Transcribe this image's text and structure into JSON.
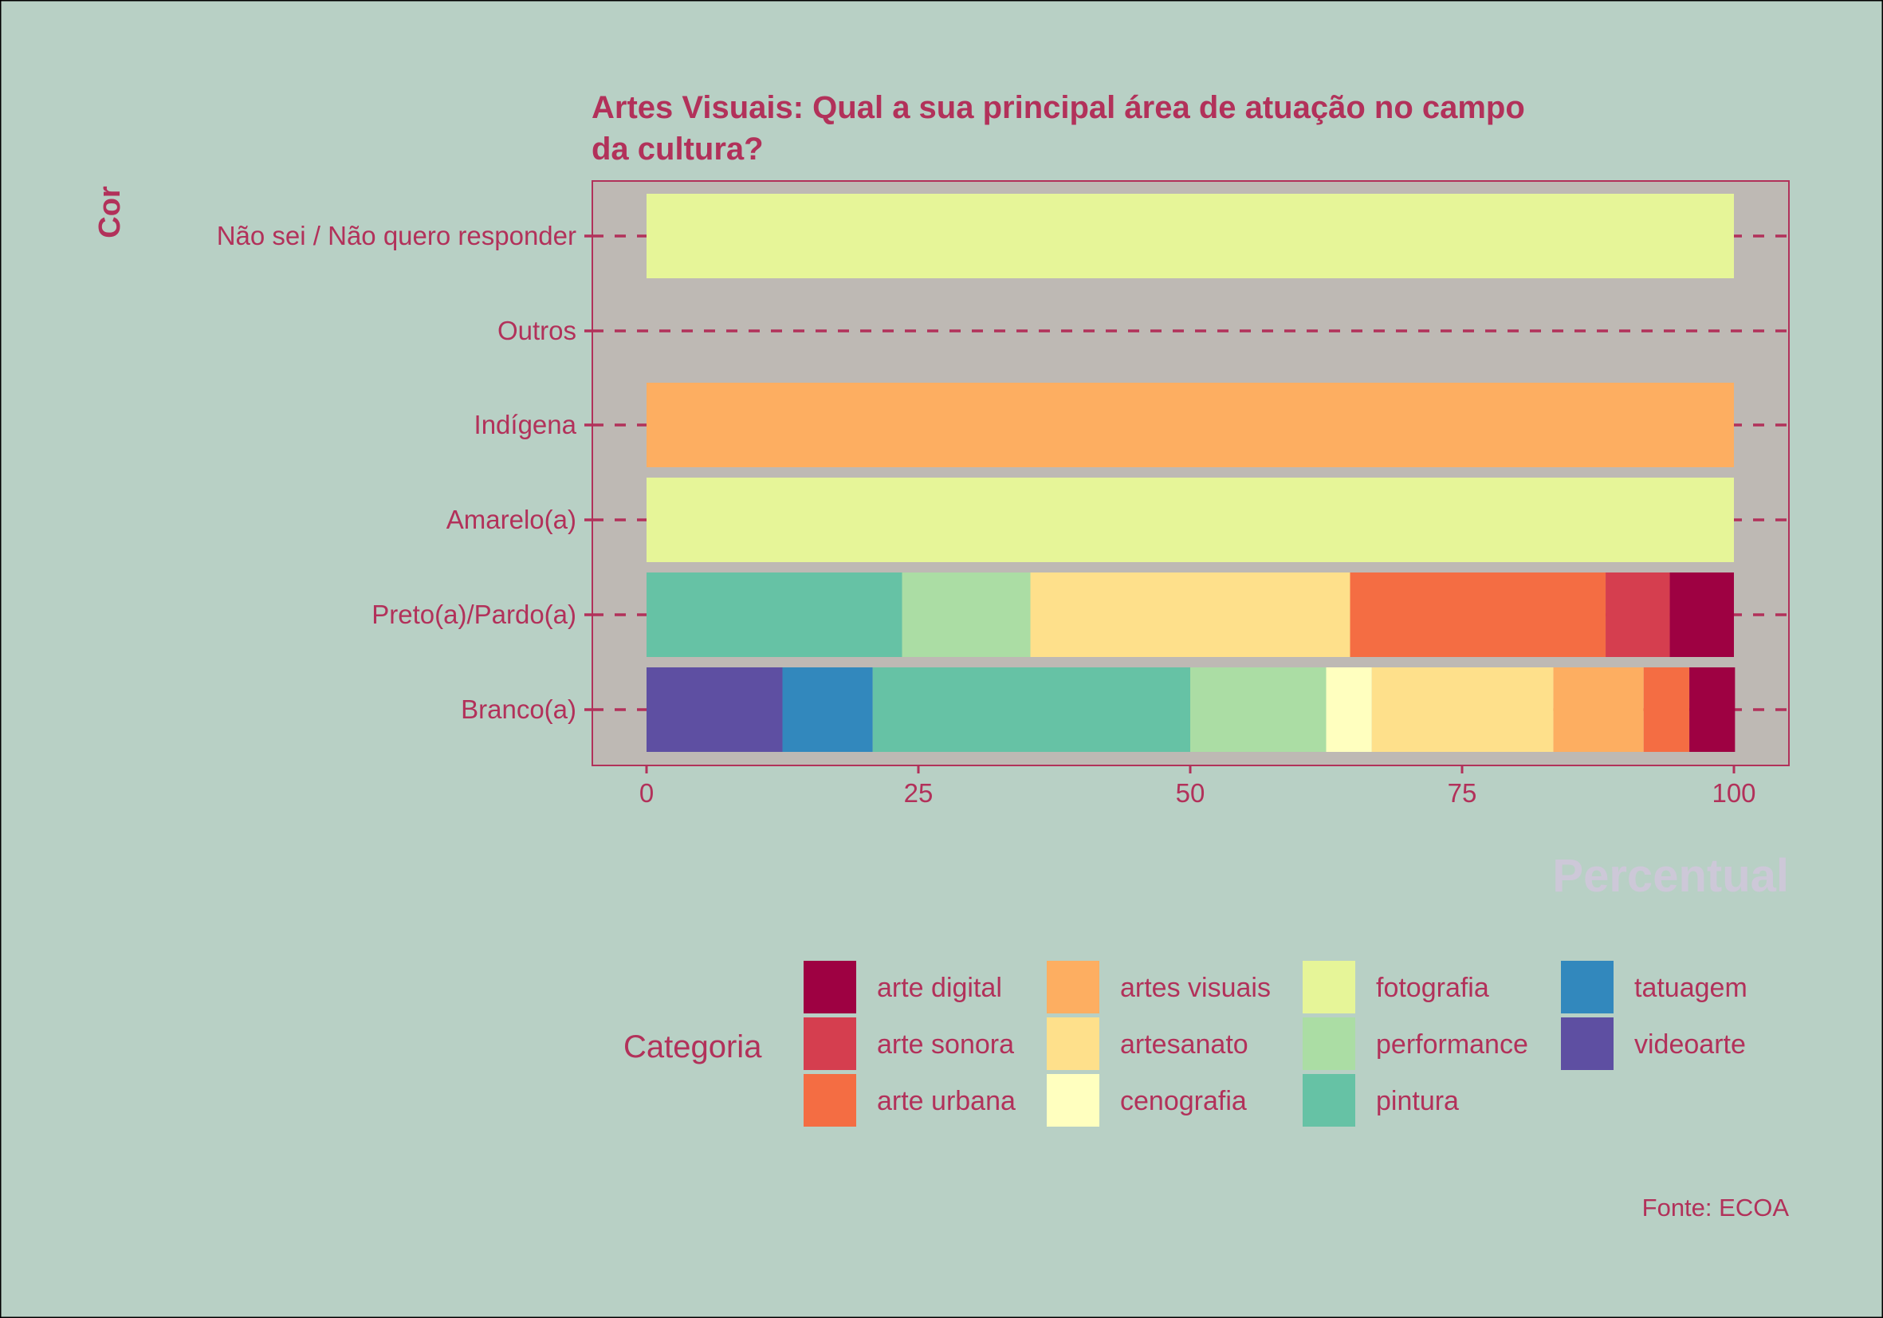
{
  "chart_data": {
    "type": "bar",
    "orientation": "horizontal",
    "stacked": true,
    "title": "Artes Visuais: Qual a sua principal área de atuação no campo\nda cultura?",
    "xlabel": "Percentual",
    "ylabel": "Cor",
    "xlim": [
      0,
      100
    ],
    "x_ticks": [
      "0",
      "25",
      "50",
      "75",
      "100"
    ],
    "caption": "Fonte: ECOA",
    "grid": "dashed horizontal",
    "legend_title": "Categoria",
    "legend_position": "bottom",
    "categories": [
      "Branco(a)",
      "Preto(a)/Pardo(a)",
      "Amarelo(a)",
      "Indígena",
      "Outros",
      "Não sei / Não quero responder"
    ],
    "series": [
      {
        "name": "arte digital",
        "color": "#9e0142",
        "values": [
          4.2,
          5.9,
          0,
          0,
          0,
          0
        ]
      },
      {
        "name": "arte sonora",
        "color": "#d53e4f",
        "values": [
          0,
          5.9,
          0,
          0,
          0,
          0
        ]
      },
      {
        "name": "arte urbana",
        "color": "#f46d43",
        "values": [
          4.2,
          23.5,
          0,
          0,
          0,
          0
        ]
      },
      {
        "name": "artes visuais",
        "color": "#fdae61",
        "values": [
          8.3,
          0,
          0,
          100,
          0,
          0
        ]
      },
      {
        "name": "artesanato",
        "color": "#fee08b",
        "values": [
          16.7,
          29.4,
          0,
          0,
          0,
          0
        ]
      },
      {
        "name": "cenografia",
        "color": "#ffffbf",
        "values": [
          4.2,
          0,
          0,
          0,
          0,
          0
        ]
      },
      {
        "name": "fotografia",
        "color": "#e6f598",
        "values": [
          0,
          0,
          100,
          0,
          0,
          100
        ]
      },
      {
        "name": "performance",
        "color": "#abdda4",
        "values": [
          12.5,
          11.8,
          0,
          0,
          0,
          0
        ]
      },
      {
        "name": "pintura",
        "color": "#66c2a5",
        "values": [
          29.2,
          23.5,
          0,
          0,
          0,
          0
        ]
      },
      {
        "name": "tatuagem",
        "color": "#3288bd",
        "values": [
          8.3,
          0,
          0,
          0,
          0,
          0
        ]
      },
      {
        "name": "videoarte",
        "color": "#5e4fa2",
        "values": [
          12.5,
          0,
          0,
          0,
          0,
          0
        ]
      }
    ],
    "colors": {
      "background": "#b8d0c5",
      "panel": "#beb9b4",
      "accent": "#b2315a",
      "xlabel": "#cdc8d8"
    }
  }
}
